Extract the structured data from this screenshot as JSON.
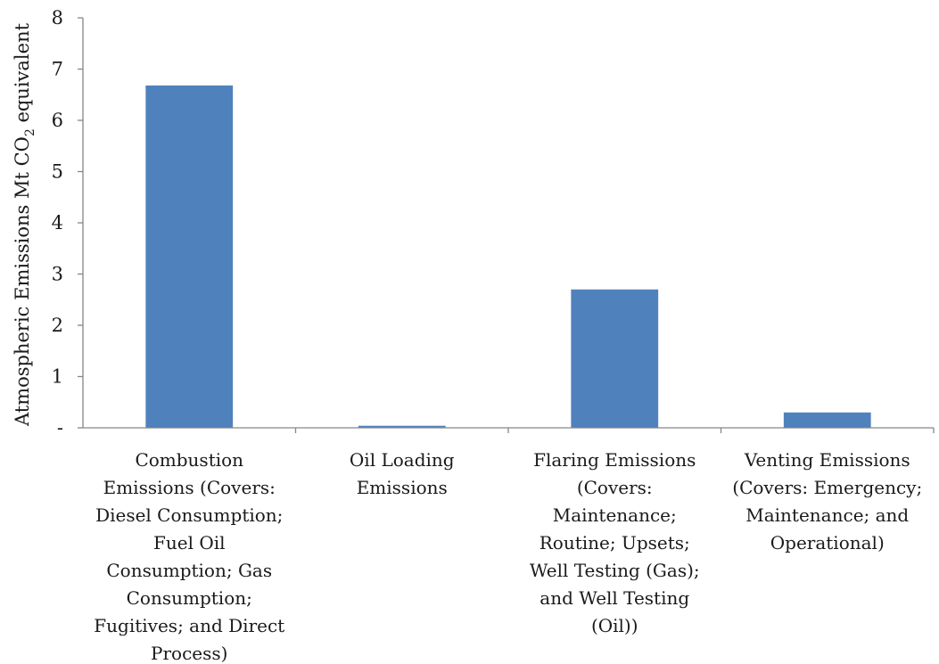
{
  "chart_data": {
    "type": "bar",
    "title": "",
    "xlabel": "",
    "ylabel": {
      "main": "Atmospheric Emissions Mt CO",
      "subscript": "2",
      "suffix": " equivalent"
    },
    "ylim": [
      0,
      8
    ],
    "yticks": [
      "-",
      "1",
      "2",
      "3",
      "4",
      "5",
      "6",
      "7",
      "8"
    ],
    "categories": [
      [
        "Combustion",
        "Emissions (Covers:",
        "Diesel Consumption;",
        "Fuel Oil",
        "Consumption; Gas",
        "Consumption;",
        "Fugitives; and Direct",
        "Process)"
      ],
      [
        "Oil Loading",
        "Emissions"
      ],
      [
        "Flaring Emissions",
        "(Covers:",
        "Maintenance;",
        "Routine; Upsets;",
        "Well Testing (Gas);",
        "and Well Testing",
        "(Oil))"
      ],
      [
        "Venting Emissions",
        "(Covers: Emergency;",
        "Maintenance; and",
        "Operational)"
      ]
    ],
    "values": [
      6.68,
      0.04,
      2.7,
      0.3
    ],
    "grid": false,
    "legend": "none",
    "colors": {
      "bar": "#4f81bd",
      "axis": "#868686",
      "text": "#1a1a1a"
    }
  }
}
